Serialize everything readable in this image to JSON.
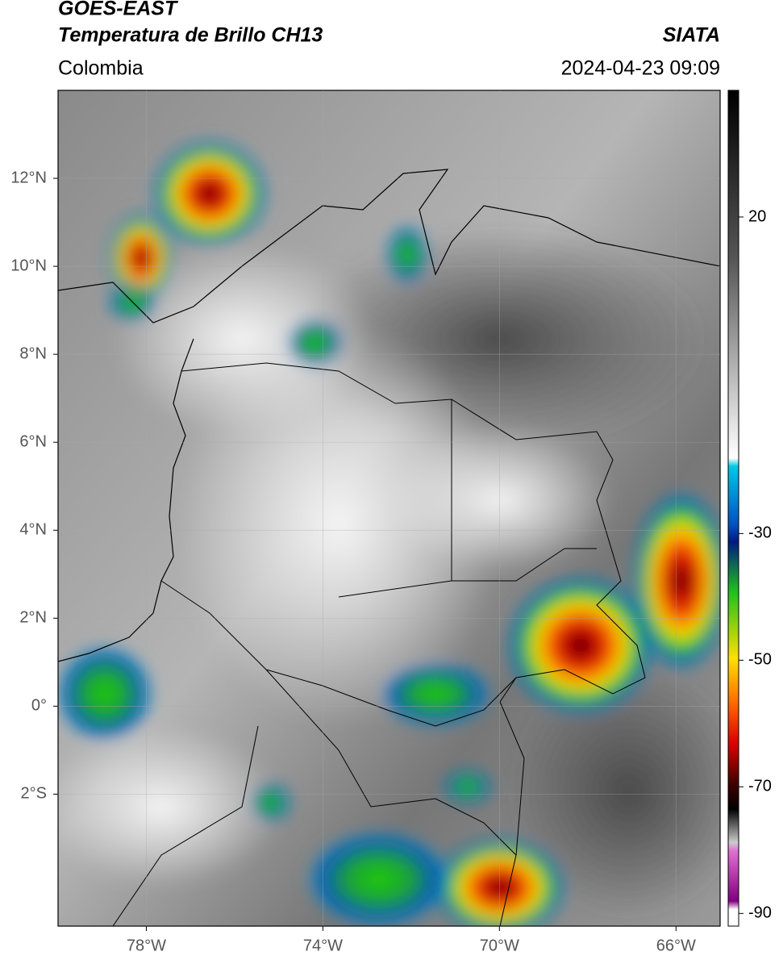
{
  "header": {
    "title": "GOES-EAST",
    "subtitle": "Temperatura de Brillo CH13",
    "region": "Colombia",
    "source": "SIATA",
    "datetime": "2024-04-23 09:09"
  },
  "map": {
    "xlim": [
      -80,
      -65
    ],
    "ylim": [
      -5,
      14
    ],
    "xticks": [
      {
        "value": -78,
        "label": "78°W"
      },
      {
        "value": -74,
        "label": "74°W"
      },
      {
        "value": -70,
        "label": "70°W"
      },
      {
        "value": -66,
        "label": "66°W"
      }
    ],
    "yticks": [
      {
        "value": 12,
        "label": "12°N"
      },
      {
        "value": 10,
        "label": "10°N"
      },
      {
        "value": 8,
        "label": "8°N"
      },
      {
        "value": 6,
        "label": "6°N"
      },
      {
        "value": 4,
        "label": "4°N"
      },
      {
        "value": 2,
        "label": "2°N"
      },
      {
        "value": 0,
        "label": "0°"
      },
      {
        "value": -2,
        "label": "2°S"
      }
    ],
    "grid": true
  },
  "colorbar": {
    "lim": [
      -92,
      40
    ],
    "ticks": [
      20,
      -30,
      -50,
      -70,
      -90
    ]
  }
}
